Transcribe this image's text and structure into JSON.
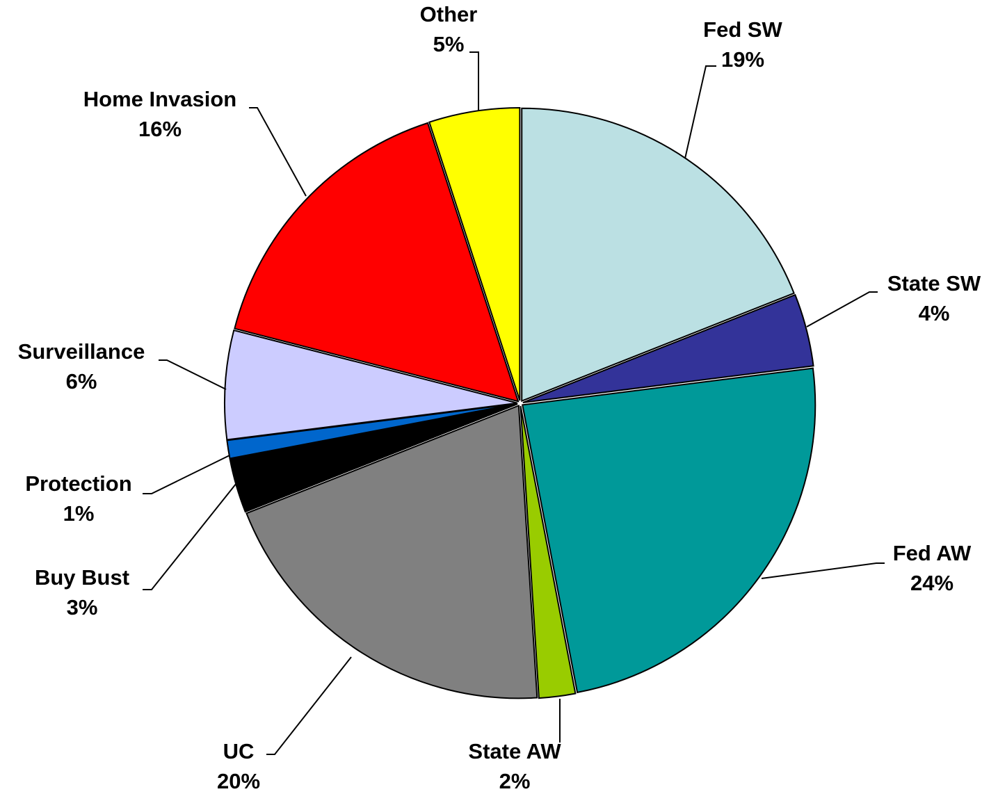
{
  "chart_data": {
    "type": "pie",
    "categories": [
      "Fed SW",
      "State SW",
      "Fed AW",
      "State AW",
      "UC",
      "Buy Bust",
      "Protection",
      "Surveillance",
      "Home Invasion",
      "Other"
    ],
    "values": [
      19,
      4,
      24,
      2,
      20,
      3,
      1,
      6,
      16,
      5
    ],
    "value_labels": [
      "19%",
      "4%",
      "24%",
      "2%",
      "20%",
      "3%",
      "1%",
      "6%",
      "16%",
      "5%"
    ],
    "colors": [
      "#bbe0e3",
      "#333399",
      "#009999",
      "#99cc00",
      "#808080",
      "#000000",
      "#0066cc",
      "#ccccff",
      "#ff0000",
      "#ffff00"
    ]
  }
}
